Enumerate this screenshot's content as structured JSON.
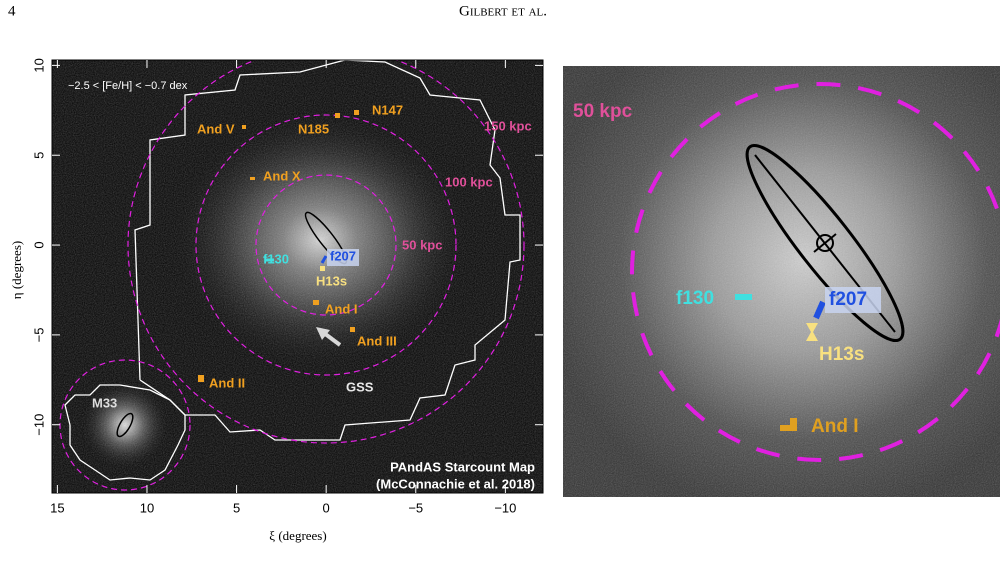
{
  "header": {
    "page_number": "4",
    "running_title": "Gilbert et al."
  },
  "figure": {
    "left_panel": {
      "xlabel": "ξ (degrees)",
      "ylabel": "η (degrees)",
      "xlim": [
        15.3,
        -12.1
      ],
      "ylim": [
        -13.8,
        10.3
      ],
      "xticks": [
        15,
        10,
        5,
        0,
        {
          "value": -5,
          "label": "−5"
        },
        {
          "value": -10,
          "label": "−10"
        }
      ],
      "yticks": [
        {
          "value": -10,
          "label": "−10"
        },
        {
          "value": -5,
          "label": "−5"
        },
        0,
        5,
        10
      ],
      "metallicity_cut": "−2.5 < [Fe/H] < −0.7 dex",
      "map_title": "PAndAS Starcount Map",
      "map_credit": "(McConnachie et al. 2018)",
      "labels": [
        {
          "text": "N147",
          "color": "#f0a020"
        },
        {
          "text": "N185",
          "color": "#f0a020"
        },
        {
          "text": "And V",
          "color": "#f0a020"
        },
        {
          "text": "150 kpc",
          "color": "#e0509a"
        },
        {
          "text": "And X",
          "color": "#f0a020"
        },
        {
          "text": "100 kpc",
          "color": "#e0509a"
        },
        {
          "text": "50 kpc",
          "color": "#e0509a"
        },
        {
          "text": "f130",
          "color": "#40e0e0"
        },
        {
          "text": "f207",
          "color": "#2050e0"
        },
        {
          "text": "H13s",
          "color": "#f8e080"
        },
        {
          "text": "And I",
          "color": "#f0a020"
        },
        {
          "text": "And III",
          "color": "#f0a020"
        },
        {
          "text": "GSS",
          "color": "#e8e8e8"
        },
        {
          "text": "And II",
          "color": "#f0a020"
        },
        {
          "text": "M33",
          "color": "#dddddd"
        }
      ]
    },
    "right_panel": {
      "labels": [
        {
          "text": "50 kpc",
          "color": "#e0509a"
        },
        {
          "text": "f130",
          "color": "#40e0e0"
        },
        {
          "text": "f207",
          "color": "#2050e0"
        },
        {
          "text": "H13s",
          "color": "#f8e080"
        },
        {
          "text": "And I",
          "color": "#e0a020"
        }
      ]
    }
  }
}
